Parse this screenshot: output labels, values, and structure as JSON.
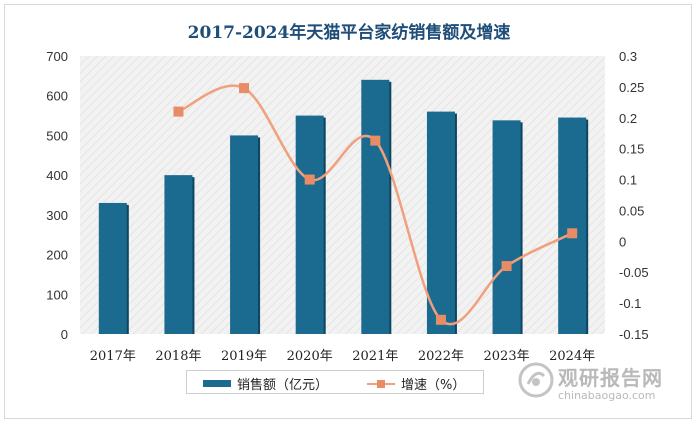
{
  "chart_data": {
    "type": "bar",
    "title": "2017-2024年天猫平台家纺销售额及增速",
    "categories": [
      "2017年",
      "2018年",
      "2019年",
      "2020年",
      "2021年",
      "2022年",
      "2023年",
      "2024年"
    ],
    "series": [
      {
        "name": "销售额（亿元）",
        "type": "bar",
        "axis": "left",
        "values": [
          330,
          400,
          500,
          550,
          640,
          560,
          538,
          545
        ]
      },
      {
        "name": "增速（%）",
        "type": "line",
        "axis": "right",
        "values": [
          null,
          0.21,
          0.248,
          0.1,
          0.163,
          -0.127,
          -0.04,
          0.013
        ]
      }
    ],
    "ylim": [
      0,
      700
    ],
    "yticks": [
      "0",
      "100",
      "200",
      "300",
      "400",
      "500",
      "600",
      "700"
    ],
    "y2lim": [
      -0.15,
      0.3
    ],
    "y2ticks": [
      "-0.15",
      "-0.1",
      "-0.05",
      "0",
      "0.05",
      "0.1",
      "0.15",
      "0.2",
      "0.25",
      "0.3"
    ],
    "legend": "bottom",
    "colors": {
      "bar": "#1b6a8f",
      "line": "#f0a07c",
      "marker": "#e88c65"
    }
  },
  "watermark": {
    "name": "观研报告网",
    "domain": "chinabaogao.com"
  }
}
